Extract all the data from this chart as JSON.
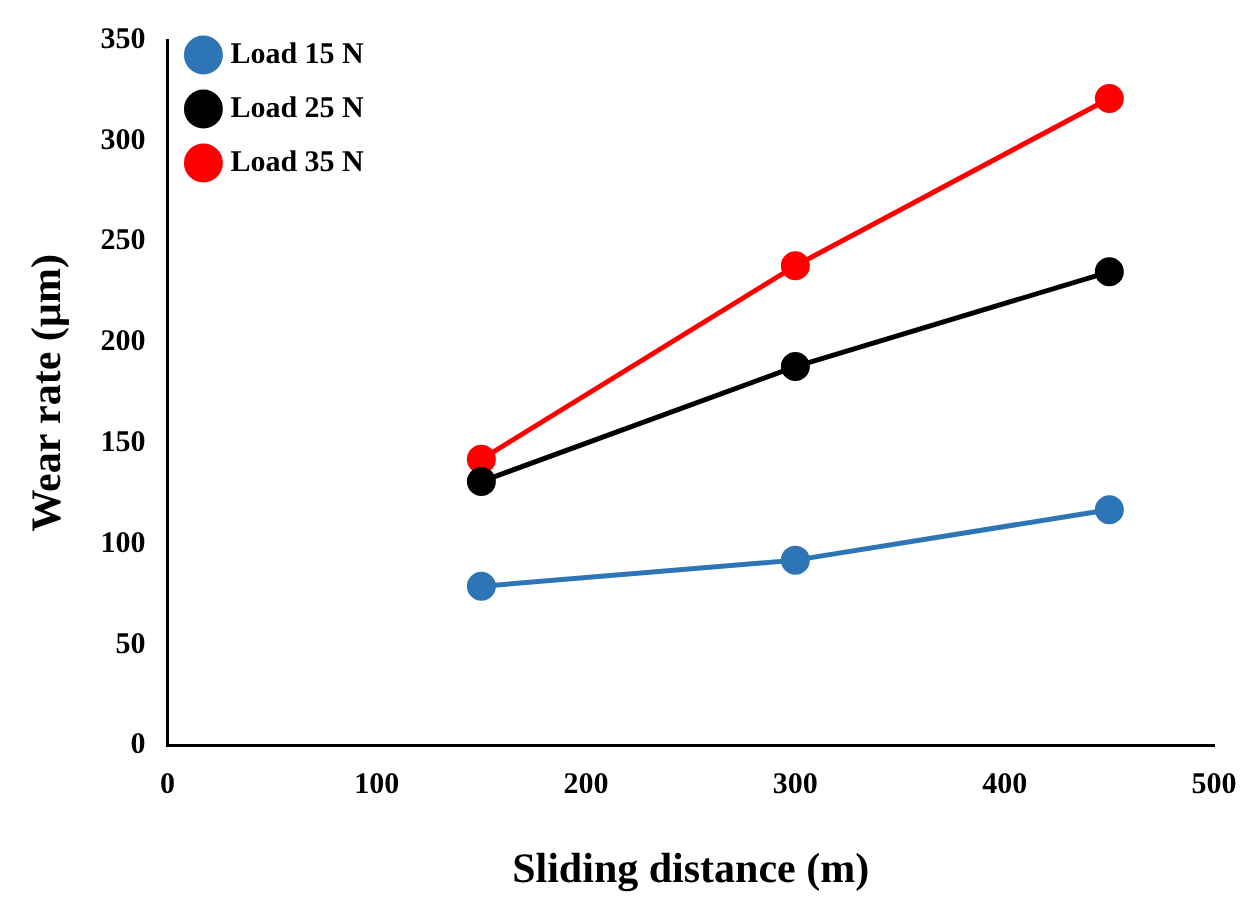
{
  "chart_data": {
    "type": "line",
    "xlabel": "Sliding distance (m)",
    "ylabel": "Wear rate (µm)",
    "x": [
      150,
      300,
      450
    ],
    "series": [
      {
        "name": "Load 15 N",
        "color": "#2e75b6",
        "values": [
          79,
          92,
          117
        ]
      },
      {
        "name": "Load 25 N",
        "color": "#000000",
        "values": [
          131,
          188,
          235
        ]
      },
      {
        "name": "Load 35 N",
        "color": "#ff0000",
        "values": [
          142,
          238,
          321
        ]
      }
    ],
    "xlim": [
      0,
      500
    ],
    "xticks": [
      0,
      100,
      200,
      300,
      400,
      500
    ],
    "ylim": [
      0,
      350
    ],
    "yticks": [
      0,
      50,
      100,
      150,
      200,
      250,
      300,
      350
    ],
    "grid": false,
    "legend": "top left",
    "marker": "circle",
    "line_style": "solid"
  }
}
